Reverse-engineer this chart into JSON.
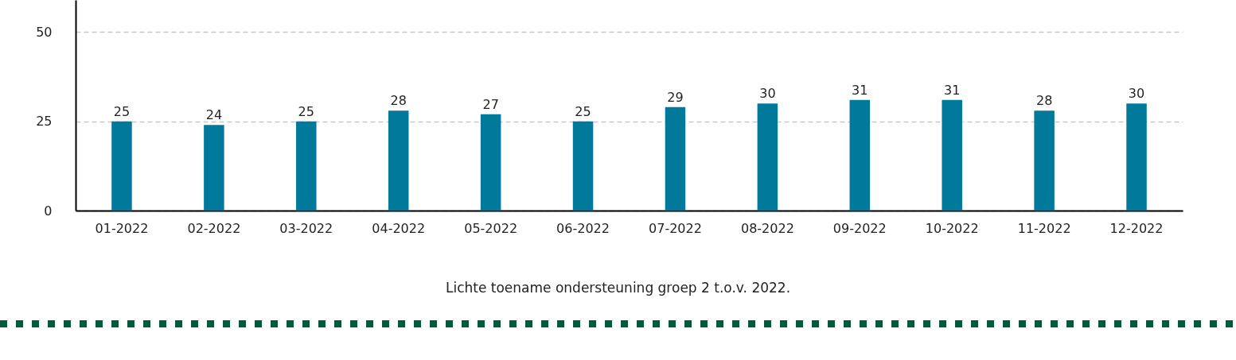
{
  "chart_data": {
    "type": "bar",
    "categories": [
      "01-2022",
      "02-2022",
      "03-2022",
      "04-2022",
      "05-2022",
      "06-2022",
      "07-2022",
      "08-2022",
      "09-2022",
      "10-2022",
      "11-2022",
      "12-2022"
    ],
    "values": [
      25,
      24,
      25,
      28,
      27,
      25,
      29,
      30,
      31,
      31,
      28,
      30
    ],
    "color": "#00799a",
    "ylim": [
      0,
      59
    ],
    "yticks": [
      0,
      25,
      50
    ],
    "grid": "y",
    "data_labels": true,
    "annotations": [
      "Lichte toename ondersteuning groep 2 t.o.v. 2022."
    ]
  }
}
